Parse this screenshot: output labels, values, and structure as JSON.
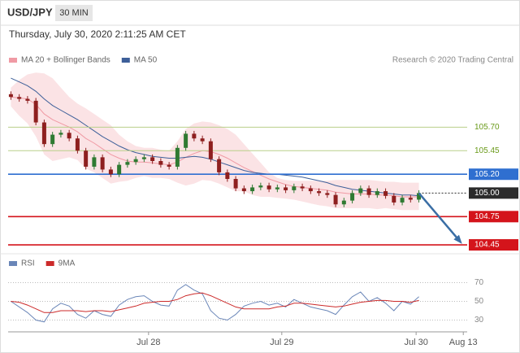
{
  "chart_data": [
    {
      "type": "candlestick",
      "title": "USD/JPY",
      "timeframe": "30 MIN",
      "subtitle": "Thursday, July 30, 2020 2:11:25 AM CET",
      "credit": "Research © 2020 Trading Central",
      "x": [
        0.5,
        2,
        3.5,
        5,
        6.5,
        8,
        9.5,
        11,
        12.5,
        14,
        15.5,
        17,
        18.5,
        20,
        21.5,
        23,
        24.5,
        26,
        27.5,
        29,
        30.5,
        32,
        33.5,
        35,
        36.5,
        38,
        39.5,
        41,
        42.5,
        44,
        45.5,
        47,
        48.5,
        50,
        51.5,
        53,
        54.5,
        56,
        57.5,
        59,
        60.5,
        62,
        63.5,
        65,
        66.5,
        68,
        69.5,
        71,
        72.5,
        74
      ],
      "open": [
        106.05,
        106.02,
        106.0,
        105.98,
        105.75,
        105.52,
        105.62,
        105.64,
        105.58,
        105.45,
        105.28,
        105.38,
        105.25,
        105.2,
        105.3,
        105.33,
        105.36,
        105.38,
        105.34,
        105.3,
        105.28,
        105.48,
        105.63,
        105.58,
        105.55,
        105.36,
        105.22,
        105.15,
        105.05,
        105.02,
        105.06,
        105.08,
        105.04,
        105.06,
        105.03,
        105.07,
        105.05,
        105.02,
        105.0,
        104.98,
        104.88,
        104.92,
        105.0,
        105.05,
        104.98,
        105.02,
        104.97,
        104.9,
        104.95,
        104.93
      ],
      "high": [
        106.08,
        106.05,
        106.03,
        106.01,
        105.78,
        105.65,
        105.67,
        105.67,
        105.61,
        105.48,
        105.41,
        105.41,
        105.28,
        105.33,
        105.36,
        105.39,
        105.41,
        105.41,
        105.37,
        105.33,
        105.51,
        105.66,
        105.66,
        105.61,
        105.58,
        105.39,
        105.25,
        105.18,
        105.08,
        105.09,
        105.11,
        105.11,
        105.09,
        105.09,
        105.1,
        105.1,
        105.08,
        105.05,
        105.03,
        105.01,
        104.95,
        105.03,
        105.08,
        105.08,
        105.05,
        105.05,
        105.0,
        104.98,
        104.98,
        105.03
      ],
      "low": [
        105.99,
        105.97,
        105.95,
        105.72,
        105.49,
        105.49,
        105.59,
        105.55,
        105.42,
        105.25,
        105.25,
        105.22,
        105.17,
        105.17,
        105.27,
        105.3,
        105.33,
        105.31,
        105.27,
        105.25,
        105.25,
        105.45,
        105.55,
        105.52,
        105.33,
        105.19,
        105.12,
        105.02,
        104.99,
        104.99,
        105.03,
        105.01,
        105.01,
        105.0,
        105.0,
        105.02,
        104.99,
        104.97,
        104.95,
        104.85,
        104.85,
        104.89,
        104.97,
        104.95,
        104.95,
        104.94,
        104.87,
        104.87,
        104.9,
        104.9
      ],
      "close": [
        106.02,
        106.0,
        105.98,
        105.75,
        105.52,
        105.62,
        105.64,
        105.58,
        105.45,
        105.28,
        105.38,
        105.25,
        105.2,
        105.3,
        105.33,
        105.36,
        105.38,
        105.34,
        105.3,
        105.28,
        105.48,
        105.63,
        105.58,
        105.55,
        105.36,
        105.22,
        105.15,
        105.05,
        105.02,
        105.06,
        105.08,
        105.04,
        105.06,
        105.03,
        105.07,
        105.05,
        105.02,
        105.0,
        104.98,
        104.88,
        104.92,
        105.0,
        105.05,
        104.98,
        105.02,
        104.97,
        104.9,
        104.95,
        104.93,
        105.0
      ],
      "up_color": "#2f7a32",
      "down_color": "#8e1f1f",
      "overlays": [
        {
          "name": "MA 20 + Bollinger Bands",
          "color": "#f09aa4",
          "band_color": "#fbe3e5",
          "values": [
            106.02,
            106.01,
            106.0,
            105.94,
            105.84,
            105.78,
            105.74,
            105.7,
            105.65,
            105.58,
            105.53,
            105.47,
            105.41,
            105.37,
            105.34,
            105.33,
            105.33,
            105.32,
            105.31,
            105.3,
            105.33,
            105.38,
            105.42,
            105.45,
            105.44,
            105.41,
            105.37,
            105.32,
            105.27,
            105.23,
            105.19,
            105.15,
            105.12,
            105.09,
            105.07,
            105.06,
            105.05,
            105.04,
            105.03,
            105.01,
            105.0,
            104.99,
            104.99,
            104.99,
            104.98,
            104.98,
            104.97,
            104.96,
            104.96,
            104.96
          ],
          "upper": [
            106.12,
            106.2,
            106.26,
            106.28,
            106.27,
            106.22,
            106.12,
            106.02,
            105.95,
            105.9,
            105.84,
            105.78,
            105.72,
            105.62,
            105.55,
            105.5,
            105.48,
            105.48,
            105.46,
            105.45,
            105.55,
            105.68,
            105.74,
            105.76,
            105.75,
            105.72,
            105.68,
            105.62,
            105.52,
            105.42,
            105.32,
            105.22,
            105.16,
            105.14,
            105.13,
            105.13,
            105.13,
            105.13,
            105.13,
            105.14,
            105.14,
            105.14,
            105.14,
            105.14,
            105.13,
            105.12,
            105.12,
            105.11,
            105.11,
            105.11
          ],
          "lower": [
            105.92,
            105.82,
            105.74,
            105.6,
            105.41,
            105.34,
            105.36,
            105.38,
            105.35,
            105.26,
            105.22,
            105.16,
            105.1,
            105.12,
            105.13,
            105.16,
            105.18,
            105.16,
            105.16,
            105.15,
            105.11,
            105.08,
            105.1,
            105.14,
            105.13,
            105.1,
            105.06,
            105.02,
            105.02,
            104.98,
            104.96,
            104.96,
            104.95,
            104.94,
            104.93,
            104.91,
            104.89,
            104.87,
            104.86,
            104.84,
            104.84,
            104.84,
            104.84,
            104.84,
            104.83,
            104.84,
            104.83,
            104.82,
            104.82,
            104.82
          ]
        },
        {
          "name": "MA 50",
          "color": "#3d5f99",
          "values": [
            106.22,
            106.18,
            106.14,
            106.08,
            106.0,
            105.93,
            105.88,
            105.83,
            105.78,
            105.72,
            105.66,
            105.6,
            105.55,
            105.5,
            105.46,
            105.43,
            105.41,
            105.39,
            105.38,
            105.37,
            105.37,
            105.38,
            105.39,
            105.38,
            105.36,
            105.33,
            105.3,
            105.27,
            105.24,
            105.22,
            105.21,
            105.2,
            105.2,
            105.19,
            105.18,
            105.17,
            105.15,
            105.13,
            105.11,
            105.08,
            105.06,
            105.04,
            105.03,
            105.02,
            105.01,
            105.0,
            104.99,
            104.98,
            104.98,
            104.97
          ]
        }
      ],
      "levels": [
        {
          "value": 105.7,
          "label": "105.70",
          "color": "#b9cf8a",
          "text_color": "#6a9a1a",
          "boxed": false
        },
        {
          "value": 105.45,
          "label": "105.45",
          "color": "#b9cf8a",
          "text_color": "#6a9a1a",
          "boxed": false
        },
        {
          "value": 105.2,
          "label": "105.20",
          "color": "#2f6fd0",
          "text_color": "#ffffff",
          "boxed": true
        },
        {
          "value": 105,
          "label": "105.00",
          "color": "#2b2b2b",
          "text_color": "#ffffff",
          "boxed": true,
          "dashed": true
        },
        {
          "value": 104.75,
          "color": "#d4141b",
          "text_color": "#ffffff",
          "boxed": true
        },
        {
          "value": 104.45,
          "color": "#d4141b",
          "text_color": "#ffffff",
          "boxed": true
        }
      ],
      "forecast": {
        "x": [
          74,
          81.5
        ],
        "values": [
          105.0,
          104.48
        ],
        "color": "#3a6ea5"
      },
      "xlim": [
        0,
        82.7
      ],
      "ylim": [
        104.39,
        106.29
      ]
    },
    {
      "type": "line",
      "x": [
        0.5,
        2,
        3.5,
        5,
        6.5,
        8,
        9.5,
        11,
        12.5,
        14,
        15.5,
        17,
        18.5,
        20,
        21.5,
        23,
        24.5,
        26,
        27.5,
        29,
        30.5,
        32,
        33.5,
        35,
        36.5,
        38,
        39.5,
        41,
        42.5,
        44,
        45.5,
        47,
        48.5,
        50,
        51.5,
        53,
        54.5,
        56,
        57.5,
        59,
        60.5,
        62,
        63.5,
        65,
        66.5,
        68,
        69.5,
        71,
        72.5,
        74
      ],
      "series": [
        {
          "name": "RSI",
          "color": "#6a86b8",
          "values": [
            50,
            44,
            38,
            30,
            28,
            42,
            48,
            45,
            36,
            32,
            40,
            36,
            34,
            46,
            52,
            55,
            56,
            50,
            46,
            45,
            62,
            68,
            62,
            58,
            40,
            32,
            30,
            36,
            45,
            48,
            50,
            46,
            48,
            44,
            52,
            48,
            44,
            42,
            40,
            36,
            46,
            55,
            60,
            50,
            54,
            48,
            40,
            50,
            47,
            55
          ]
        },
        {
          "name": "9MA",
          "color": "#cc2a2a",
          "values": [
            50,
            49,
            46,
            42,
            38,
            38,
            40,
            40,
            40,
            39,
            40,
            40,
            39,
            41,
            43,
            45,
            48,
            49,
            50,
            50,
            52,
            56,
            58,
            59,
            56,
            52,
            48,
            44,
            42,
            42,
            42,
            42,
            44,
            45,
            48,
            48,
            47,
            46,
            45,
            44,
            45,
            47,
            49,
            50,
            51,
            51,
            50,
            50,
            49,
            51
          ]
        }
      ],
      "xlim": [
        0,
        82.7
      ],
      "ylim": [
        20,
        80
      ],
      "yticks": [
        30,
        50,
        70
      ],
      "xticks": [
        {
          "value": 25.3,
          "label": "Jul 28"
        },
        {
          "value": 49.3,
          "label": "Jul 29"
        },
        {
          "value": 73.5,
          "label": "Jul 30"
        },
        {
          "value": 82,
          "label": "Aug 13"
        }
      ]
    }
  ]
}
